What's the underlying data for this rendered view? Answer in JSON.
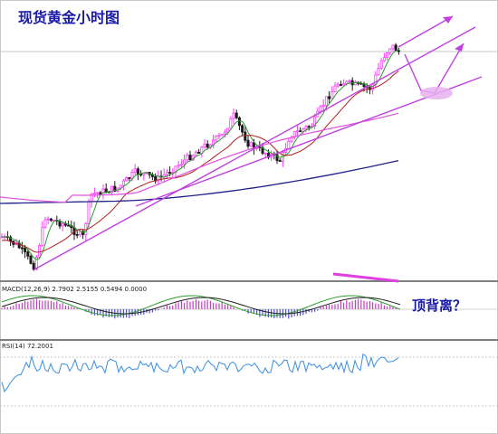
{
  "chart_data": {
    "type": "candlestick",
    "title": "现货黄金小时图",
    "annotation": "顶背离？",
    "colors": {
      "background": "#ffffff",
      "bull_candle": "#ff3cff",
      "bear_candle": "#1a1a1a",
      "ma_fast": "#2e9b2e",
      "ma_mid": "#b02020",
      "ma_slow": "#20208a",
      "ma_magenta": "#e050e0",
      "trendline": "#c040e0",
      "macd_hist": "#c040c0",
      "macd_line": "#2e9b2e",
      "signal_line": "#202020",
      "rsi_line": "#3a8ee0",
      "divergence_marker": "#e040e0",
      "separator": "#808080"
    },
    "price_panel": {
      "moving_averages": [
        "ma_fast",
        "ma_mid",
        "ma_slow",
        "ma_magenta"
      ],
      "trendlines": 3,
      "projection_arrows": 2
    },
    "macd": {
      "label": "MACD(12,26,9) 2.7902 2.5155 0.5494 0.0000"
    },
    "rsi": {
      "label": "RSI(14) 72.2001"
    }
  }
}
